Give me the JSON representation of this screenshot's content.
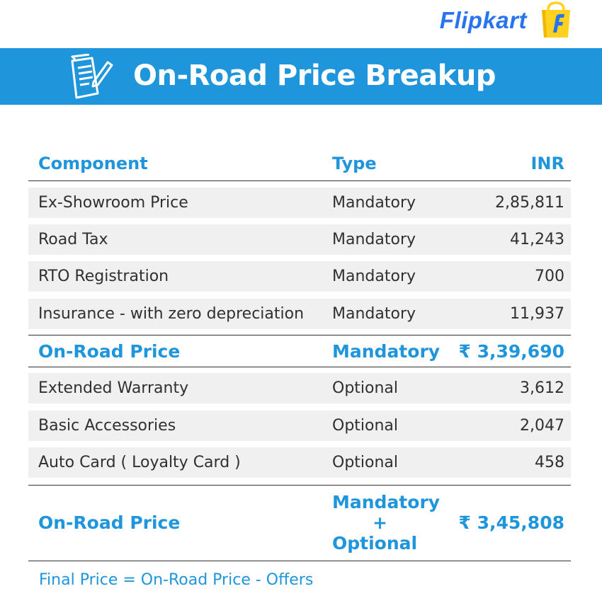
{
  "brand": {
    "name": "Flipkart",
    "logo_icon": "shopping-bag-f-icon",
    "accent_color": "#2874f0",
    "bag_color": "#ffd21f"
  },
  "banner": {
    "title": "On-Road Price Breakup",
    "icon": "document-pen-icon",
    "color": "#1f95dc"
  },
  "table": {
    "headers": {
      "component": "Component",
      "type": "Type",
      "amount": "INR"
    },
    "mandatory_rows": [
      {
        "component": "Ex-Showroom Price",
        "type": "Mandatory",
        "amount": "2,85,811"
      },
      {
        "component": "Road Tax",
        "type": "Mandatory",
        "amount": "41,243"
      },
      {
        "component": "RTO Registration",
        "type": "Mandatory",
        "amount": "700"
      },
      {
        "component": "Insurance - with zero depreciation",
        "type": "Mandatory",
        "amount": "11,937"
      }
    ],
    "subtotal": {
      "component": "On-Road Price",
      "type": "Mandatory",
      "amount": "₹ 3,39,690"
    },
    "optional_rows": [
      {
        "component": "Extended Warranty",
        "type": "Optional",
        "amount": "3,612"
      },
      {
        "component": "Basic Accessories",
        "type": "Optional",
        "amount": "2,047"
      },
      {
        "component": "Auto Card ( Loyalty Card )",
        "type": "Optional",
        "amount": "458"
      }
    ],
    "total": {
      "component": "On-Road Price",
      "type_line1": "Mandatory",
      "type_line2": "+",
      "type_line3": "Optional",
      "amount": "₹ 3,45,808"
    }
  },
  "footnote": "Final Price = On-Road Price - Offers"
}
